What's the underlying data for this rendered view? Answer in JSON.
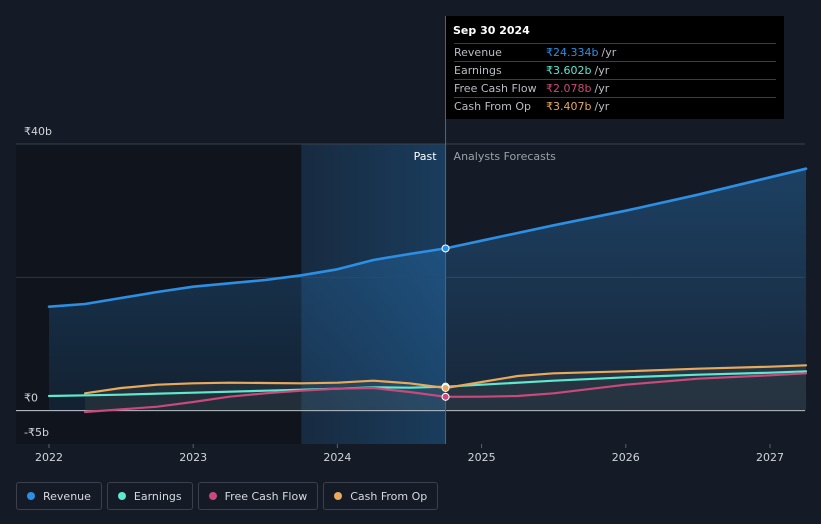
{
  "chart_data": {
    "type": "line",
    "title": "",
    "currency_symbol": "₹",
    "x_ticks": [
      "2022",
      "2023",
      "2024",
      "2025",
      "2026",
      "2027"
    ],
    "x_domain": [
      2022.0,
      2027.25
    ],
    "ylim": [
      -5,
      40
    ],
    "y_ticks": [
      {
        "value": 40,
        "label": "₹40b"
      },
      {
        "value": 0,
        "label": "₹0"
      },
      {
        "value": -5,
        "label": "-₹5b"
      }
    ],
    "gridlines": [
      40,
      20,
      0
    ],
    "past_label": "Past",
    "forecast_label": "Analysts Forecasts",
    "past_end": 2024.75,
    "highlight_start": 2023.75,
    "series": [
      {
        "name": "Revenue",
        "color": "#2d8fe3",
        "points": [
          [
            2022.0,
            15.6
          ],
          [
            2022.25,
            16.0
          ],
          [
            2022.5,
            16.9
          ],
          [
            2022.75,
            17.8
          ],
          [
            2023.0,
            18.6
          ],
          [
            2023.25,
            19.1
          ],
          [
            2023.5,
            19.6
          ],
          [
            2023.75,
            20.3
          ],
          [
            2024.0,
            21.2
          ],
          [
            2024.25,
            22.6
          ],
          [
            2024.5,
            23.5
          ],
          [
            2024.75,
            24.334
          ],
          [
            2025.0,
            25.5
          ],
          [
            2025.5,
            27.8
          ],
          [
            2026.0,
            30.0
          ],
          [
            2026.5,
            32.4
          ],
          [
            2027.0,
            35.0
          ],
          [
            2027.25,
            36.3
          ]
        ],
        "fill": true
      },
      {
        "name": "Earnings",
        "color": "#5ee8d0",
        "points": [
          [
            2022.0,
            2.2
          ],
          [
            2022.5,
            2.4
          ],
          [
            2023.0,
            2.7
          ],
          [
            2023.5,
            3.0
          ],
          [
            2024.0,
            3.3
          ],
          [
            2024.25,
            3.5
          ],
          [
            2024.5,
            3.45
          ],
          [
            2024.75,
            3.602
          ],
          [
            2025.0,
            3.9
          ],
          [
            2025.5,
            4.5
          ],
          [
            2026.0,
            5.0
          ],
          [
            2026.5,
            5.4
          ],
          [
            2027.0,
            5.7
          ],
          [
            2027.25,
            5.9
          ]
        ],
        "fill": false
      },
      {
        "name": "Free Cash Flow",
        "color": "#c9497a",
        "points": [
          [
            2022.25,
            -0.2
          ],
          [
            2022.75,
            0.6
          ],
          [
            2023.0,
            1.3
          ],
          [
            2023.25,
            2.1
          ],
          [
            2023.5,
            2.6
          ],
          [
            2023.75,
            3.0
          ],
          [
            2024.0,
            3.3
          ],
          [
            2024.25,
            3.4
          ],
          [
            2024.5,
            2.8
          ],
          [
            2024.75,
            2.078
          ],
          [
            2025.0,
            2.1
          ],
          [
            2025.25,
            2.2
          ],
          [
            2025.5,
            2.6
          ],
          [
            2026.0,
            3.9
          ],
          [
            2026.5,
            4.8
          ],
          [
            2027.0,
            5.3
          ],
          [
            2027.25,
            5.6
          ]
        ],
        "fill": false
      },
      {
        "name": "Cash From Op",
        "color": "#e7a95c",
        "points": [
          [
            2022.25,
            2.6
          ],
          [
            2022.5,
            3.4
          ],
          [
            2022.75,
            3.9
          ],
          [
            2023.0,
            4.1
          ],
          [
            2023.25,
            4.2
          ],
          [
            2023.5,
            4.15
          ],
          [
            2023.75,
            4.1
          ],
          [
            2024.0,
            4.2
          ],
          [
            2024.25,
            4.5
          ],
          [
            2024.5,
            4.1
          ],
          [
            2024.75,
            3.407
          ],
          [
            2025.0,
            4.3
          ],
          [
            2025.25,
            5.2
          ],
          [
            2025.5,
            5.6
          ],
          [
            2026.0,
            5.9
          ],
          [
            2026.5,
            6.3
          ],
          [
            2027.0,
            6.6
          ],
          [
            2027.25,
            6.8
          ]
        ],
        "fill": false
      }
    ],
    "tooltip": {
      "date": "Sep 30 2024",
      "rows": [
        {
          "label": "Revenue",
          "value": "₹24.334b",
          "unit": "/yr",
          "color": "#2d8fe3"
        },
        {
          "label": "Earnings",
          "value": "₹3.602b",
          "unit": "/yr",
          "color": "#5ee8d0"
        },
        {
          "label": "Free Cash Flow",
          "value": "₹2.078b",
          "unit": "/yr",
          "color": "#c9497a"
        },
        {
          "label": "Cash From Op",
          "value": "₹3.407b",
          "unit": "/yr",
          "color": "#e7a95c"
        }
      ]
    },
    "legend": [
      {
        "label": "Revenue",
        "color": "#2d8fe3"
      },
      {
        "label": "Earnings",
        "color": "#5ee8d0"
      },
      {
        "label": "Free Cash Flow",
        "color": "#c9497a"
      },
      {
        "label": "Cash From Op",
        "color": "#e7a95c"
      }
    ]
  }
}
